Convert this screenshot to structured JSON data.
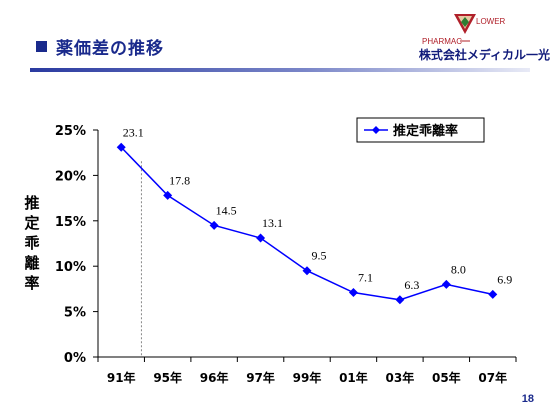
{
  "slide": {
    "title": "薬価差の推移",
    "page_number": "18"
  },
  "logo": {
    "brand_left": "PHARMAC",
    "brand_right": "LOWER",
    "company": "株式会社メディカル一光"
  },
  "colors": {
    "title": "#1a2a8c",
    "series": "#0000ff",
    "axis": "#000000"
  },
  "chart_data": {
    "type": "line",
    "categories": [
      "91年",
      "95年",
      "96年",
      "97年",
      "99年",
      "01年",
      "03年",
      "05年",
      "07年"
    ],
    "series": [
      {
        "name": "推定乖離率",
        "values": [
          23.1,
          17.8,
          14.5,
          13.1,
          9.5,
          7.1,
          6.3,
          8.0,
          6.9
        ]
      }
    ],
    "data_labels": [
      "23.1",
      "17.8",
      "14.5",
      "13.1",
      "9.5",
      "7.1",
      "6.3",
      "8.0",
      "6.9"
    ],
    "ylabel": "推定乖離率",
    "ylim": [
      0,
      25
    ],
    "y_ticks": [
      "0%",
      "5%",
      "10%",
      "15%",
      "20%",
      "25%"
    ],
    "legend": "top-right",
    "grid": false,
    "marker": "diamond"
  }
}
